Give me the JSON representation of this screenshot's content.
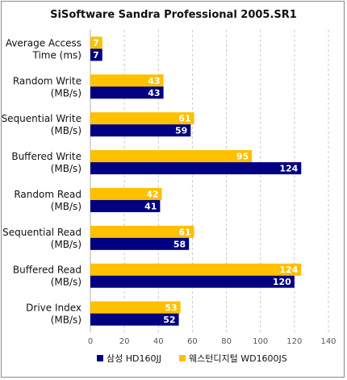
{
  "chart_data": {
    "type": "bar",
    "orientation": "horizontal",
    "title": "SiSoftware Sandra Professional 2005.SR1",
    "categories": [
      [
        "Average Access",
        "Time (ms)"
      ],
      [
        "Random Write",
        "(MB/s)"
      ],
      [
        "Sequential Write",
        "(MB/s)"
      ],
      [
        "Buffered Write",
        "(MB/s)"
      ],
      [
        "Random Read",
        "(MB/s)"
      ],
      [
        "Sequential Read",
        "(MB/s)"
      ],
      [
        "Buffered Read",
        "(MB/s)"
      ],
      [
        "Drive Index",
        "(MB/s)"
      ]
    ],
    "series": [
      {
        "name": "웨스턴디지털 WD1600JS",
        "color": "#ffc000",
        "values": [
          7,
          43,
          61,
          95,
          42,
          61,
          124,
          53
        ]
      },
      {
        "name": "삼성 HD160JJ",
        "color": "#000080",
        "values": [
          7,
          43,
          59,
          124,
          41,
          58,
          120,
          52
        ]
      }
    ],
    "xlim": [
      0,
      140
    ],
    "xticks": [
      0,
      20,
      40,
      60,
      80,
      100,
      120,
      140
    ],
    "grid": true,
    "legend_position": "bottom",
    "legend_order": [
      1,
      0
    ]
  }
}
